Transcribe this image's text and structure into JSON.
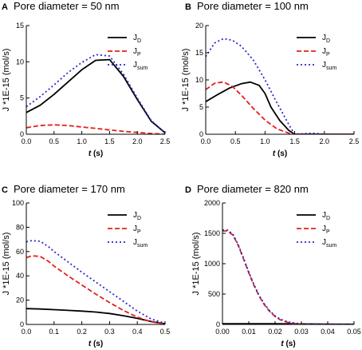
{
  "chart_data": [
    {
      "id": "A",
      "type": "line",
      "panel_letter": "A",
      "title": "Pore diameter = 50 nm",
      "xlabel_var": "t",
      "xlabel_unit": " (s)",
      "ylabel": "J *1E-15 (mol/s)",
      "xlim": [
        0,
        2.5
      ],
      "ylim": [
        0,
        15
      ],
      "xticks": [
        0.0,
        0.5,
        1.0,
        1.5,
        2.0,
        2.5
      ],
      "xtick_labels": [
        "0.0",
        "0.5",
        "1.0",
        "1.5",
        "2.0",
        "2.5"
      ],
      "yticks": [
        0,
        5,
        10,
        15
      ],
      "ytick_labels": [
        "0",
        "5",
        "10",
        "15"
      ],
      "legend_position": "top-right",
      "series": [
        {
          "name": "J",
          "sub": "D",
          "color": "#000000",
          "dash": "",
          "x": [
            0,
            0.25,
            0.5,
            0.75,
            1.0,
            1.25,
            1.5,
            1.75,
            2.0,
            2.25,
            2.5
          ],
          "y": [
            3.0,
            4.0,
            5.5,
            7.2,
            8.9,
            10.2,
            10.3,
            8.0,
            4.8,
            1.8,
            0.2
          ]
        },
        {
          "name": "J",
          "sub": "P",
          "color": "#e0201c",
          "dash": "6,3",
          "x": [
            0,
            0.25,
            0.5,
            0.75,
            1.0,
            1.25,
            1.5,
            1.75,
            2.0,
            2.25,
            2.5
          ],
          "y": [
            0.9,
            1.2,
            1.3,
            1.2,
            1.0,
            0.8,
            0.6,
            0.4,
            0.25,
            0.1,
            0.0
          ]
        },
        {
          "name": "J",
          "sub": "sum",
          "color": "#2828c8",
          "dash": "2,3",
          "x": [
            0,
            0.25,
            0.5,
            0.75,
            1.0,
            1.25,
            1.5,
            1.75,
            2.0,
            2.25,
            2.5
          ],
          "y": [
            3.8,
            5.2,
            6.8,
            8.5,
            9.9,
            11.0,
            10.8,
            8.3,
            5.0,
            1.9,
            0.2
          ]
        }
      ]
    },
    {
      "id": "B",
      "type": "line",
      "panel_letter": "B",
      "title": "Pore diameter = 100 nm",
      "xlabel_var": "t",
      "xlabel_unit": " (s)",
      "ylabel": "J *1E-15 (mol/s)",
      "xlim": [
        0,
        2.5
      ],
      "ylim": [
        0,
        20
      ],
      "xticks": [
        0.0,
        0.5,
        1.0,
        1.5,
        2.0,
        2.5
      ],
      "xtick_labels": [
        "0.0",
        "0.5",
        "1.0",
        "1.5",
        "2.0",
        "2.5"
      ],
      "yticks": [
        0,
        5,
        10,
        15,
        20
      ],
      "ytick_labels": [
        "0",
        "5",
        "10",
        "15",
        "20"
      ],
      "legend_position": "top-right",
      "series": [
        {
          "name": "J",
          "sub": "D",
          "color": "#000000",
          "dash": "",
          "x": [
            0,
            0.2,
            0.4,
            0.6,
            0.75,
            0.9,
            1.0,
            1.1,
            1.25,
            1.4,
            1.5,
            2.0,
            2.5
          ],
          "y": [
            6.0,
            7.3,
            8.5,
            9.3,
            9.6,
            9.0,
            7.5,
            5.0,
            2.5,
            0.7,
            0.0,
            0.0,
            0.0
          ]
        },
        {
          "name": "J",
          "sub": "P",
          "color": "#e0201c",
          "dash": "6,3",
          "x": [
            0,
            0.15,
            0.3,
            0.45,
            0.6,
            0.8,
            1.0,
            1.2,
            1.4,
            1.5,
            2.0,
            2.5
          ],
          "y": [
            8.2,
            9.4,
            9.6,
            8.8,
            7.2,
            4.8,
            2.6,
            1.0,
            0.2,
            0.0,
            0.0,
            0.0
          ]
        },
        {
          "name": "J",
          "sub": "sum",
          "color": "#2828c8",
          "dash": "2,3",
          "x": [
            0,
            0.15,
            0.3,
            0.45,
            0.6,
            0.8,
            1.0,
            1.2,
            1.4,
            1.5,
            1.8,
            2.0,
            2.5
          ],
          "y": [
            14.3,
            16.8,
            17.6,
            17.3,
            16.2,
            13.7,
            10.0,
            5.8,
            1.8,
            0.0,
            0.2,
            0.0,
            0.0
          ]
        }
      ]
    },
    {
      "id": "C",
      "type": "line",
      "panel_letter": "C",
      "title": "Pore diameter = 170 nm",
      "xlabel_var": "t",
      "xlabel_unit": " (s)",
      "ylabel": "J *1E-15 (mol/s)",
      "xlim": [
        0,
        0.5
      ],
      "ylim": [
        0,
        100
      ],
      "xticks": [
        0.0,
        0.1,
        0.2,
        0.3,
        0.4,
        0.5
      ],
      "xtick_labels": [
        "0.0",
        "0.1",
        "0.2",
        "0.3",
        "0.4",
        "0.5"
      ],
      "yticks": [
        0,
        20,
        40,
        60,
        80,
        100
      ],
      "ytick_labels": [
        "0",
        "20",
        "40",
        "60",
        "80",
        "100"
      ],
      "legend_position": "top-right",
      "series": [
        {
          "name": "J",
          "sub": "D",
          "color": "#000000",
          "dash": "",
          "x": [
            0,
            0.05,
            0.1,
            0.15,
            0.2,
            0.25,
            0.3,
            0.35,
            0.4,
            0.45,
            0.5
          ],
          "y": [
            13.0,
            12.7,
            12.2,
            11.6,
            11.0,
            10.2,
            9.0,
            7.2,
            5.0,
            2.4,
            0.5
          ]
        },
        {
          "name": "J",
          "sub": "P",
          "color": "#e0201c",
          "dash": "6,3",
          "x": [
            0,
            0.02,
            0.05,
            0.08,
            0.1,
            0.15,
            0.2,
            0.25,
            0.3,
            0.35,
            0.4,
            0.45,
            0.5
          ],
          "y": [
            55.0,
            56.5,
            56.0,
            52.0,
            48.0,
            40.0,
            32.5,
            25.0,
            18.0,
            11.5,
            6.0,
            2.2,
            0.4
          ]
        },
        {
          "name": "J",
          "sub": "sum",
          "color": "#2828c8",
          "dash": "2,3",
          "x": [
            0,
            0.02,
            0.05,
            0.08,
            0.1,
            0.15,
            0.2,
            0.25,
            0.3,
            0.35,
            0.4,
            0.45,
            0.5
          ],
          "y": [
            68.0,
            69.0,
            68.5,
            64.0,
            60.0,
            51.5,
            43.0,
            35.0,
            27.0,
            19.0,
            11.0,
            4.5,
            0.9
          ]
        }
      ]
    },
    {
      "id": "D",
      "type": "line",
      "panel_letter": "D",
      "title": "Pore diameter = 820 nm",
      "xlabel_var": "t",
      "xlabel_unit": " (s)",
      "ylabel": "J *1E-15 (mol/s)",
      "xlim": [
        0,
        0.05
      ],
      "ylim": [
        0,
        2000
      ],
      "xticks": [
        0.0,
        0.01,
        0.02,
        0.03,
        0.04,
        0.05
      ],
      "xtick_labels": [
        "0.00",
        "0.01",
        "0.02",
        "0.03",
        "0.04",
        "0.05"
      ],
      "yticks": [
        0,
        500,
        1000,
        1500,
        2000
      ],
      "ytick_labels": [
        "0",
        "500",
        "1000",
        "1500",
        "2000"
      ],
      "legend_position": "top-right",
      "series": [
        {
          "name": "J",
          "sub": "D",
          "color": "#000000",
          "dash": "",
          "x": [
            0,
            0.01,
            0.02,
            0.03,
            0.04,
            0.05
          ],
          "y": [
            12,
            12,
            11,
            8,
            5,
            3
          ]
        },
        {
          "name": "J",
          "sub": "P",
          "color": "#e0201c",
          "dash": "6,3",
          "x": [
            0,
            0.002,
            0.004,
            0.006,
            0.008,
            0.01,
            0.012,
            0.014,
            0.016,
            0.018,
            0.02,
            0.022,
            0.025,
            0.028,
            0.03,
            0.035,
            0.04,
            0.05
          ],
          "y": [
            1540,
            1540,
            1470,
            1300,
            1080,
            850,
            640,
            460,
            320,
            210,
            130,
            75,
            30,
            10,
            4,
            0,
            0,
            0
          ]
        },
        {
          "name": "J",
          "sub": "sum",
          "color": "#2828c8",
          "dash": "2,3",
          "x": [
            0,
            0.002,
            0.004,
            0.006,
            0.008,
            0.01,
            0.012,
            0.014,
            0.016,
            0.018,
            0.02,
            0.022,
            0.025,
            0.028,
            0.03,
            0.035,
            0.04,
            0.05
          ],
          "y": [
            1552,
            1552,
            1482,
            1312,
            1092,
            862,
            652,
            471,
            331,
            221,
            141,
            86,
            40,
            18,
            10,
            4,
            3,
            3
          ]
        }
      ]
    }
  ]
}
